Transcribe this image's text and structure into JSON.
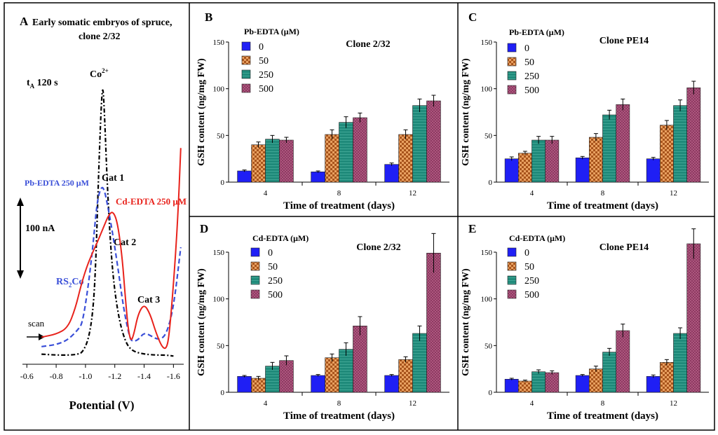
{
  "colors": {
    "c0": "#1f1ff5",
    "c50": "#a8541c",
    "c250": "#1f8a7a",
    "c500": "#8e3a62",
    "cd": "#e8221b",
    "pb": "#3a4fd8",
    "co": "#000000"
  },
  "chart_data": [
    {
      "id": "A",
      "type": "line",
      "panel_letter": "A",
      "title": "Early somatic embryos of spruce,",
      "title2": "clone 2/32",
      "xlabel": "Potential (V)",
      "xticks": [
        "-0.6",
        "-0.8",
        "-1.0",
        "-1.2",
        "-1.4",
        "-1.6"
      ],
      "xlim": [
        -0.57,
        -1.67
      ],
      "t_label": "t",
      "t_sub": "A",
      "t_value": " 120 s",
      "scale_label": "100 nA",
      "scan_label": "scan",
      "peak_labels": {
        "co_main": "Co",
        "co_sup": "2+",
        "cat1": "Cat 1",
        "cat2": "Cat 2",
        "cat3": "Cat 3",
        "rs_main": "RS",
        "rs_sub": "2",
        "rs_tail": "Co"
      },
      "series": [
        {
          "name": "Co2+",
          "style": "dashdot",
          "color": "#000000",
          "points": [
            [
              -0.7,
              7
            ],
            [
              -0.8,
              6
            ],
            [
              -0.9,
              6
            ],
            [
              -0.95,
              7
            ],
            [
              -0.98,
              9
            ],
            [
              -1.02,
              22
            ],
            [
              -1.05,
              50
            ],
            [
              -1.07,
              100
            ],
            [
              -1.09,
              200
            ],
            [
              -1.11,
              280
            ],
            [
              -1.12,
              290
            ],
            [
              -1.13,
              260
            ],
            [
              -1.15,
              180
            ],
            [
              -1.18,
              100
            ],
            [
              -1.22,
              50
            ],
            [
              -1.27,
              20
            ],
            [
              -1.32,
              10
            ],
            [
              -1.4,
              7
            ],
            [
              -1.48,
              6
            ],
            [
              -1.55,
              6
            ],
            [
              -1.6,
              5
            ]
          ]
        },
        {
          "name": "Pb-EDTA 250 μM",
          "label": "Pb-EDTA 250 μM",
          "style": "dashed",
          "color": "#3a4fd8",
          "points": [
            [
              -0.7,
              15
            ],
            [
              -0.8,
              17
            ],
            [
              -0.88,
              22
            ],
            [
              -0.95,
              33
            ],
            [
              -0.98,
              40
            ],
            [
              -1.02,
              80
            ],
            [
              -1.05,
              120
            ],
            [
              -1.08,
              170
            ],
            [
              -1.11,
              185
            ],
            [
              -1.13,
              180
            ],
            [
              -1.15,
              165
            ],
            [
              -1.18,
              140
            ],
            [
              -1.22,
              100
            ],
            [
              -1.26,
              55
            ],
            [
              -1.3,
              25
            ],
            [
              -1.32,
              20
            ],
            [
              -1.36,
              22
            ],
            [
              -1.4,
              30
            ],
            [
              -1.45,
              26
            ],
            [
              -1.5,
              22
            ],
            [
              -1.55,
              27
            ],
            [
              -1.6,
              55
            ],
            [
              -1.65,
              120
            ]
          ]
        },
        {
          "name": "Cd-EDTA 250 μM",
          "label": "Cd-EDTA 250 μM",
          "style": "solid",
          "color": "#e8221b",
          "points": [
            [
              -0.7,
              25
            ],
            [
              -0.8,
              28
            ],
            [
              -0.88,
              35
            ],
            [
              -0.93,
              55
            ],
            [
              -0.97,
              80
            ],
            [
              -1.01,
              100
            ],
            [
              -1.05,
              115
            ],
            [
              -1.08,
              125
            ],
            [
              -1.12,
              140
            ],
            [
              -1.16,
              155
            ],
            [
              -1.19,
              158
            ],
            [
              -1.22,
              145
            ],
            [
              -1.25,
              110
            ],
            [
              -1.27,
              70
            ],
            [
              -1.29,
              35
            ],
            [
              -1.31,
              20
            ],
            [
              -1.33,
              28
            ],
            [
              -1.36,
              50
            ],
            [
              -1.4,
              60
            ],
            [
              -1.44,
              50
            ],
            [
              -1.48,
              30
            ],
            [
              -1.52,
              15
            ],
            [
              -1.55,
              12
            ],
            [
              -1.57,
              25
            ],
            [
              -1.6,
              80
            ],
            [
              -1.63,
              150
            ],
            [
              -1.65,
              225
            ]
          ]
        }
      ]
    },
    {
      "id": "B",
      "type": "bar",
      "panel_letter": "B",
      "title": "Clone 2/32",
      "ylabel": "GSH content (ng/mg FW)",
      "xlabel": "Time of treatment (days)",
      "legend_title": "Pb-EDTA (μM)",
      "legend": [
        "0",
        "50",
        "250",
        "500"
      ],
      "categories": [
        "4",
        "8",
        "12"
      ],
      "ylim": [
        0,
        150
      ],
      "yticks": [
        "0",
        "50",
        "100",
        "150"
      ],
      "series": [
        {
          "name": "0",
          "values": [
            12,
            11,
            19
          ],
          "errors": [
            1,
            1,
            1.5
          ]
        },
        {
          "name": "50",
          "values": [
            40,
            51,
            51
          ],
          "errors": [
            3,
            5,
            5
          ]
        },
        {
          "name": "250",
          "values": [
            46,
            64,
            82
          ],
          "errors": [
            4,
            6,
            7
          ]
        },
        {
          "name": "500",
          "values": [
            45,
            69,
            87
          ],
          "errors": [
            3,
            5,
            6
          ]
        }
      ]
    },
    {
      "id": "C",
      "type": "bar",
      "panel_letter": "C",
      "title": "Clone PE14",
      "ylabel": "GSH content (ng/mg FW)",
      "xlabel": "Time of treatment (days)",
      "legend_title": "Pb-EDTA (μM)",
      "legend": [
        "0",
        "50",
        "250",
        "500"
      ],
      "categories": [
        "4",
        "8",
        "12"
      ],
      "ylim": [
        0,
        150
      ],
      "yticks": [
        "0",
        "50",
        "100",
        "150"
      ],
      "series": [
        {
          "name": "0",
          "values": [
            25,
            26,
            25
          ],
          "errors": [
            2,
            1.5,
            1.5
          ]
        },
        {
          "name": "50",
          "values": [
            31,
            48,
            61
          ],
          "errors": [
            2,
            4,
            5
          ]
        },
        {
          "name": "250",
          "values": [
            45,
            72,
            82
          ],
          "errors": [
            4,
            5,
            6
          ]
        },
        {
          "name": "500",
          "values": [
            45,
            83,
            101
          ],
          "errors": [
            4,
            6,
            7
          ]
        }
      ]
    },
    {
      "id": "D",
      "type": "bar",
      "panel_letter": "D",
      "title": "Clone 2/32",
      "ylabel": "GSH content (ng/mg FW)",
      "xlabel": "Time of treatment (days)",
      "legend_title": "Cd-EDTA (μM)",
      "legend": [
        "0",
        "50",
        "250",
        "500"
      ],
      "categories": [
        "4",
        "8",
        "12"
      ],
      "ylim": [
        0,
        150
      ],
      "yticks": [
        "0",
        "50",
        "100",
        "150"
      ],
      "series": [
        {
          "name": "0",
          "values": [
            17,
            18,
            18
          ],
          "errors": [
            1,
            1,
            1
          ]
        },
        {
          "name": "50",
          "values": [
            15,
            37,
            35
          ],
          "errors": [
            2,
            4,
            3
          ]
        },
        {
          "name": "250",
          "values": [
            28,
            46,
            63
          ],
          "errors": [
            4,
            7,
            8
          ]
        },
        {
          "name": "500",
          "values": [
            34,
            71,
            149
          ],
          "errors": [
            5,
            10,
            21
          ]
        }
      ]
    },
    {
      "id": "E",
      "type": "bar",
      "panel_letter": "E",
      "title": "Clone PE14",
      "ylabel": "GSH content (ng/mg FW)",
      "xlabel": "Time of treatment (days)",
      "legend_title": "Cd-EDTA (μM)",
      "legend": [
        "0",
        "50",
        "250",
        "500"
      ],
      "categories": [
        "4",
        "8",
        "12"
      ],
      "ylim": [
        0,
        150
      ],
      "yticks": [
        "0",
        "50",
        "100",
        "150"
      ],
      "series": [
        {
          "name": "0",
          "values": [
            14,
            18,
            17
          ],
          "errors": [
            1,
            1,
            1.5
          ]
        },
        {
          "name": "50",
          "values": [
            12,
            25,
            32
          ],
          "errors": [
            1,
            3,
            3
          ]
        },
        {
          "name": "250",
          "values": [
            22,
            43,
            63
          ],
          "errors": [
            2,
            4,
            6
          ]
        },
        {
          "name": "500",
          "values": [
            21,
            66,
            159
          ],
          "errors": [
            2,
            7,
            16
          ]
        }
      ]
    }
  ]
}
